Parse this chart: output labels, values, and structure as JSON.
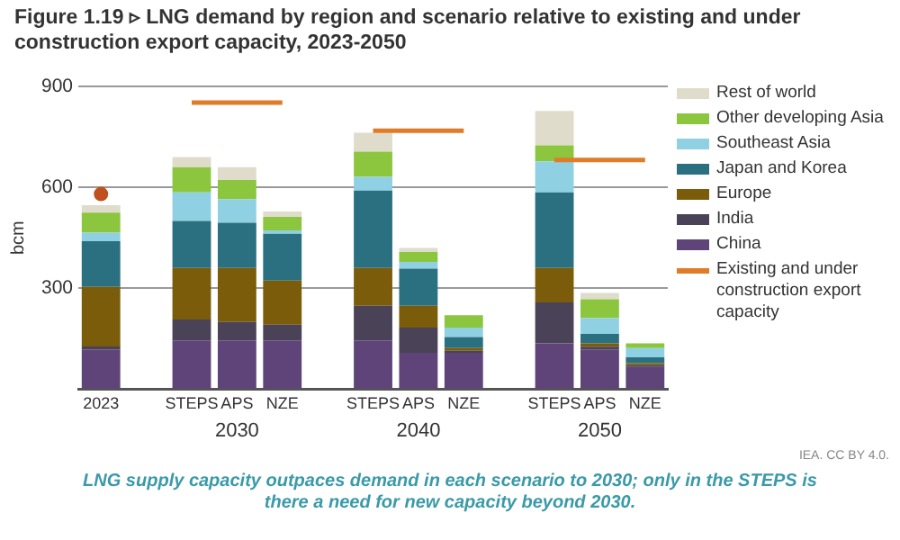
{
  "chart_data": {
    "type": "bar",
    "stacked": true,
    "title": "Figure 1.19 ▹ LNG demand by region and scenario relative to existing and under construction export capacity, 2023-2050",
    "ylabel": "bcm",
    "categories": [
      "2023",
      null,
      "STEPS",
      "APS",
      "NZE",
      null,
      "STEPS",
      "APS",
      "NZE",
      null,
      "STEPS",
      "APS",
      "NZE"
    ],
    "ylim": [
      0,
      900
    ],
    "yticks": [
      {
        "value": 0,
        "label": null
      },
      300,
      600,
      900
    ],
    "grid": "y",
    "legend": "right",
    "series": [
      {
        "name": "China",
        "color": "#5e4478",
        "values": [
          118,
          null,
          145,
          145,
          145,
          null,
          145,
          108,
          108,
          null,
          136,
          118,
          66
        ]
      },
      {
        "name": "India",
        "color": "#4a4256",
        "values": [
          9,
          null,
          62,
          55,
          47,
          null,
          103,
          75,
          6,
          null,
          122,
          8,
          5
        ]
      },
      {
        "name": "Europe",
        "color": "#7a5c0a",
        "values": [
          177,
          null,
          153,
          160,
          131,
          null,
          112,
          65,
          8,
          null,
          102,
          10,
          6
        ]
      },
      {
        "name": "Japan and Korea",
        "color": "#2a7080",
        "values": [
          136,
          null,
          140,
          135,
          139,
          null,
          230,
          110,
          33,
          null,
          225,
          28,
          18
        ]
      },
      {
        "name": "Southeast Asia",
        "color": "#8fd0e3",
        "values": [
          25,
          null,
          85,
          70,
          10,
          null,
          41,
          20,
          28,
          null,
          92,
          47,
          27
        ]
      },
      {
        "name": "Other developing Asia",
        "color": "#8cc63f",
        "values": [
          60,
          null,
          75,
          57,
          40,
          null,
          75,
          30,
          37,
          null,
          48,
          56,
          14
        ]
      },
      {
        "name": "Rest of world",
        "color": "#e0dccb",
        "values": [
          22,
          null,
          30,
          38,
          16,
          null,
          56,
          12,
          0,
          null,
          102,
          19,
          0
        ]
      },
      {
        "name": "Existing and under construction export capacity",
        "type": "line",
        "color": "#e07b28",
        "values": [
          null,
          null,
          852,
          852,
          852,
          null,
          768,
          768,
          768,
          null,
          681,
          681,
          681
        ]
      },
      {
        "type": "scatter",
        "color": "#c0501e",
        "values": [
          580,
          null,
          null,
          null,
          null,
          null,
          null,
          null,
          null,
          null,
          null,
          null,
          null
        ]
      }
    ],
    "annotations": [
      "2030",
      "2040",
      "2050",
      "IEA. CC BY 4.0.",
      "LNG supply capacity outpaces demand in each scenario to 2030; only in the STEPS is there a need for new capacity beyond 2030."
    ]
  }
}
